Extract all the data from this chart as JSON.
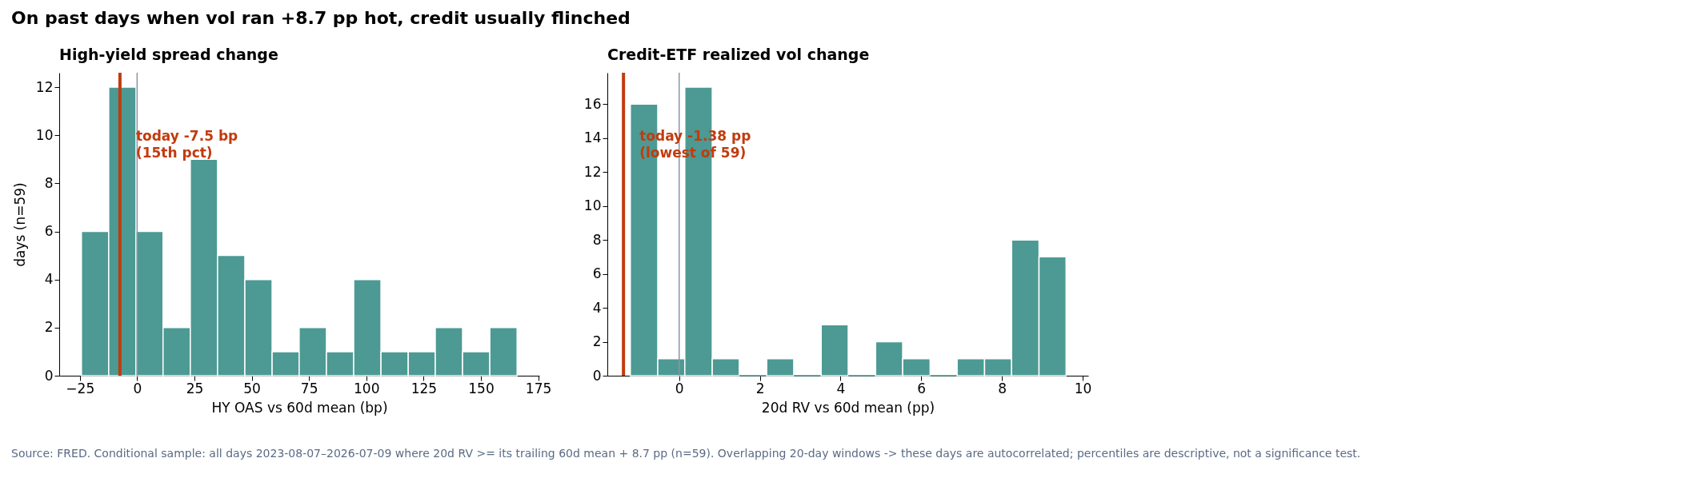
{
  "chart_data": [
    {
      "type": "histogram",
      "title": "On past days when vol ran +8.7 pp hot, credit usually flinched",
      "subtitle": "High-yield spread change",
      "xlabel": "HY OAS vs 60d mean (bp)",
      "ylabel": "days (n=59)",
      "bins": [
        -24.3,
        -12.4,
        -0.5,
        11.3,
        23.2,
        35.1,
        47.0,
        58.9,
        70.7,
        82.6,
        94.5,
        106.4,
        118.3,
        130.1,
        142.0,
        153.9,
        165.8
      ],
      "values": [
        6,
        12,
        6,
        2,
        9,
        5,
        4,
        1,
        2,
        1,
        4,
        1,
        1,
        2,
        1,
        2
      ],
      "color": "#4c9a93",
      "xlim": [
        -34,
        175.5
      ],
      "xticks": [
        -25,
        0,
        25,
        50,
        75,
        100,
        125,
        150,
        175
      ],
      "ylim": [
        0,
        12.6
      ],
      "yticks": [
        0,
        2,
        4,
        6,
        8,
        10,
        12
      ],
      "grid": false,
      "ref_lines": [
        {
          "axis": "x",
          "value": 0,
          "label": null,
          "color": "#8a94a6"
        },
        {
          "axis": "x",
          "value": -7.5,
          "label": "today -7.5 bp\n(15th pct)",
          "color": "#c23b0e"
        }
      ],
      "annotations": [
        "Source: FRED. Conditional sample: all days 2023-08-07–2026-07-09 where 20d RV >= its trailing 60d mean + 8.7 pp (n=59). Overlapping 20-day windows -> these days are autocorrelated; percentiles are descriptive, not a significance test."
      ]
    },
    {
      "type": "histogram",
      "subtitle": "Credit-ETF realized vol change",
      "xlabel": "20d RV vs 60d mean (pp)",
      "bins": [
        -1.21,
        -0.53,
        0.14,
        0.82,
        1.49,
        2.17,
        2.84,
        3.52,
        4.19,
        4.87,
        5.54,
        6.22,
        6.89,
        7.57,
        8.24,
        8.92,
        9.59
      ],
      "values": [
        16,
        1,
        17,
        1,
        0,
        1,
        0,
        3,
        0,
        2,
        1,
        0,
        1,
        1,
        8,
        7
      ],
      "color": "#4c9a93",
      "xlim": [
        -1.78,
        10.14
      ],
      "xticks": [
        0,
        2,
        4,
        6,
        8,
        10
      ],
      "ylim": [
        0,
        17.85
      ],
      "yticks": [
        0,
        2,
        4,
        6,
        8,
        10,
        12,
        14,
        16
      ],
      "grid": false,
      "ref_lines": [
        {
          "axis": "x",
          "value": 0,
          "label": null,
          "color": "#8a94a6"
        },
        {
          "axis": "x",
          "value": -1.38,
          "label": "today -1.38 pp\n(lowest of 59)",
          "color": "#c23b0e"
        }
      ]
    }
  ]
}
